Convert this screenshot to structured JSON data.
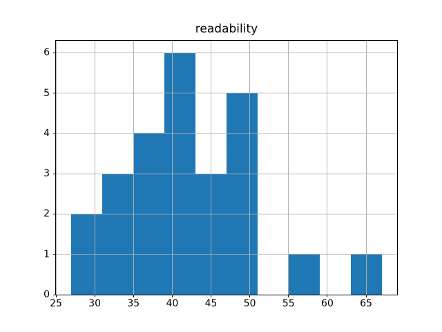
{
  "chart_data": {
    "type": "bar",
    "subtype": "histogram",
    "title": "readability",
    "xlabel": "",
    "ylabel": "",
    "bin_edges": [
      27,
      31,
      35,
      39,
      43,
      47,
      51,
      55,
      59,
      63,
      67
    ],
    "counts": [
      2,
      3,
      4,
      6,
      3,
      5,
      0,
      1,
      0,
      1
    ],
    "x_ticks": [
      25,
      30,
      35,
      40,
      45,
      50,
      55,
      60,
      65
    ],
    "y_ticks": [
      0,
      1,
      2,
      3,
      4,
      5,
      6
    ],
    "xlim": [
      25,
      69
    ],
    "ylim": [
      0,
      6.3
    ],
    "grid": true,
    "grid_above_bars": true,
    "legend": "none",
    "colors": {
      "bar": "#1f77b4",
      "grid": "#b0b0b0",
      "spine": "#000000",
      "text": "#000000",
      "background": "#ffffff"
    }
  }
}
